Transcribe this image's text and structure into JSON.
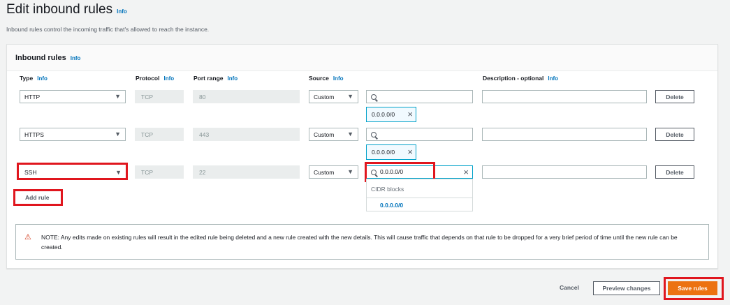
{
  "page": {
    "title": "Edit inbound rules",
    "info": "Info",
    "subtitle": "Inbound rules control the incoming traffic that's allowed to reach the instance."
  },
  "panel": {
    "title": "Inbound rules",
    "info": "Info",
    "columns": {
      "type": "Type",
      "protocol": "Protocol",
      "port_range": "Port range",
      "source": "Source",
      "description": "Description - optional",
      "info": "Info"
    },
    "rules": [
      {
        "type": "HTTP",
        "protocol": "TCP",
        "port": "80",
        "source": "Custom",
        "search": "",
        "chip": "0.0.0.0/0",
        "description": "",
        "delete": "Delete"
      },
      {
        "type": "HTTPS",
        "protocol": "TCP",
        "port": "443",
        "source": "Custom",
        "search": "",
        "chip": "0.0.0.0/0",
        "description": "",
        "delete": "Delete"
      },
      {
        "type": "SSH",
        "protocol": "TCP",
        "port": "22",
        "source": "Custom",
        "search": "0.0.0.0/0",
        "description": "",
        "delete": "Delete"
      }
    ],
    "dropdown": {
      "group": "CIDR blocks",
      "option": "0.0.0.0/0"
    },
    "add_rule": "Add rule",
    "note": "NOTE: Any edits made on existing rules will result in the edited rule being deleted and a new rule created with the new details. This will cause traffic that depends on that rule to be dropped for a very brief period of time until the new rule can be created."
  },
  "footer": {
    "cancel": "Cancel",
    "preview": "Preview changes",
    "save": "Save rules"
  },
  "colors": {
    "accent": "#ec7211",
    "link": "#0073bb",
    "highlight": "#e0161e"
  }
}
